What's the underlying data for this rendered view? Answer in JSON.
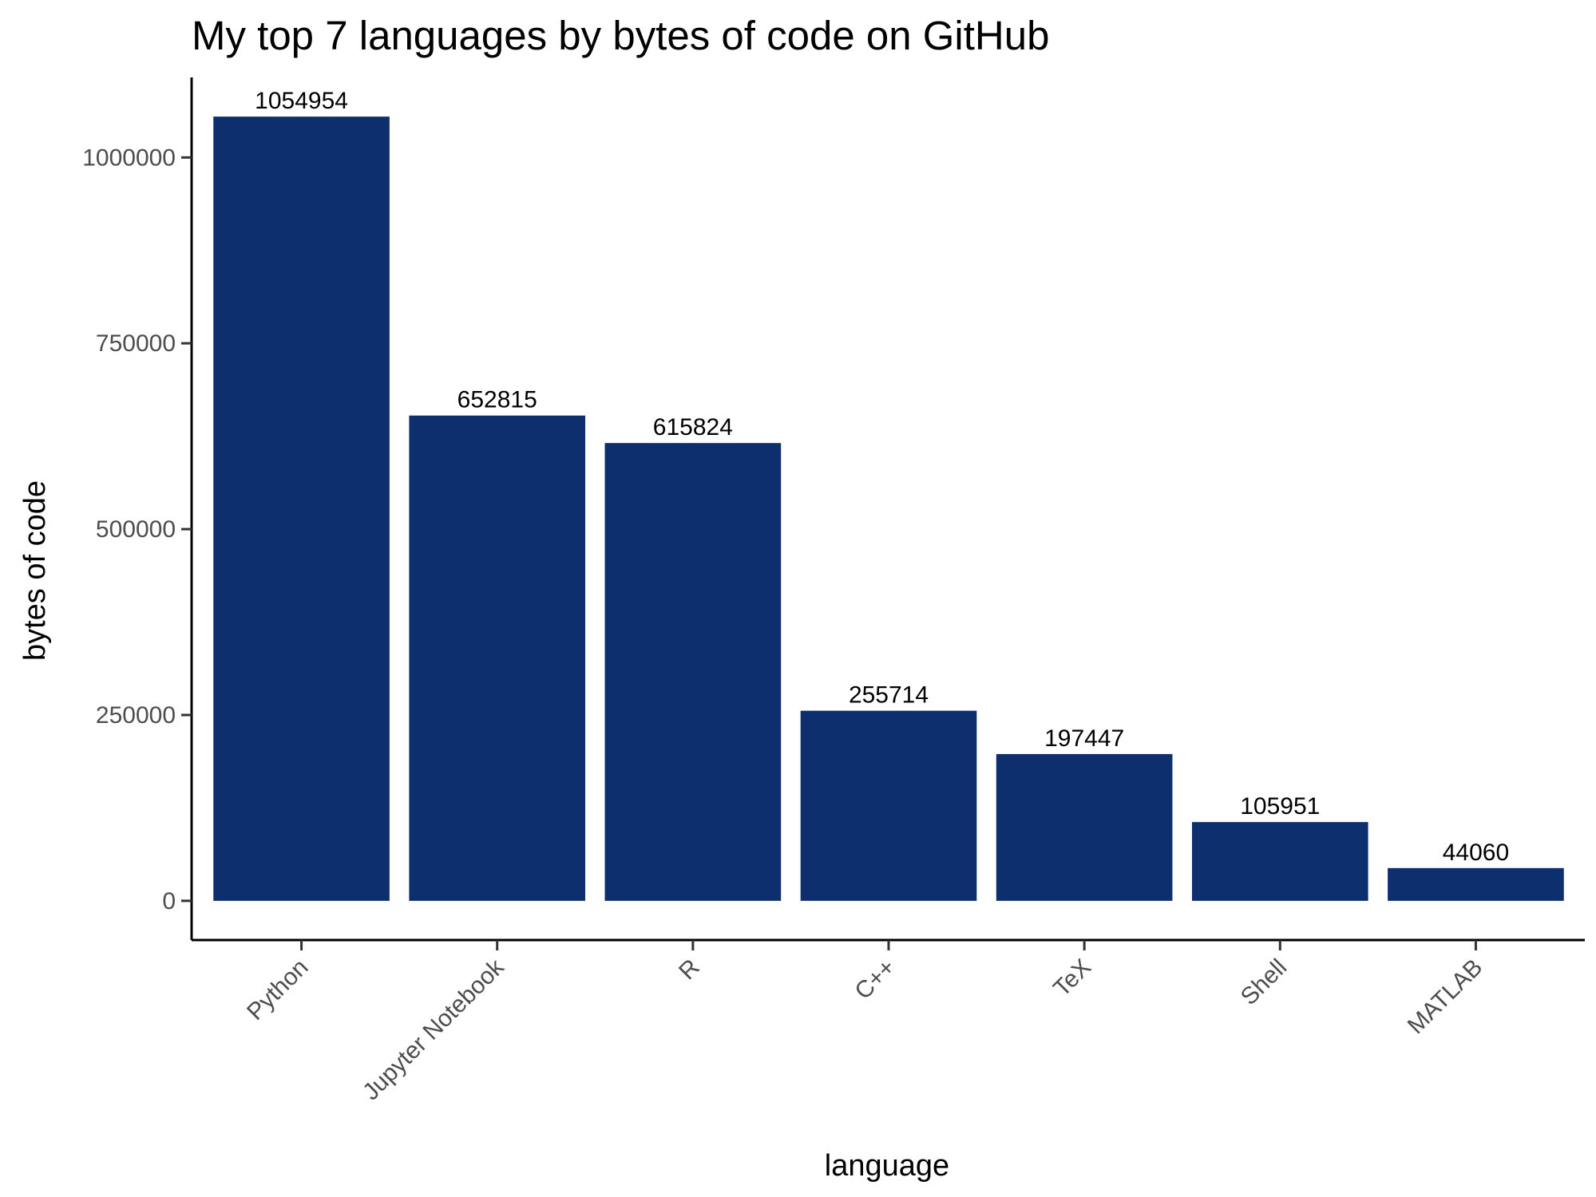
{
  "chart_data": {
    "type": "bar",
    "title": "My top 7 languages by bytes of code on GitHub",
    "xlabel": "language",
    "ylabel": "bytes of code",
    "categories": [
      "Python",
      "Jupyter Notebook",
      "R",
      "C++",
      "TeX",
      "Shell",
      "MATLAB"
    ],
    "values": [
      1054954,
      652815,
      615824,
      255714,
      197447,
      105951,
      44060
    ],
    "data_labels": [
      "1054954",
      "652815",
      "615824",
      "255714",
      "197447",
      "105951",
      "44060"
    ],
    "y_ticks": [
      0,
      250000,
      500000,
      750000,
      1000000
    ],
    "y_tick_labels": [
      "0",
      "250000",
      "500000",
      "750000",
      "1000000"
    ],
    "ylim": [
      -52750,
      1107700
    ],
    "bar_color": "#0e2f6e",
    "grid": false,
    "legend": "none"
  }
}
